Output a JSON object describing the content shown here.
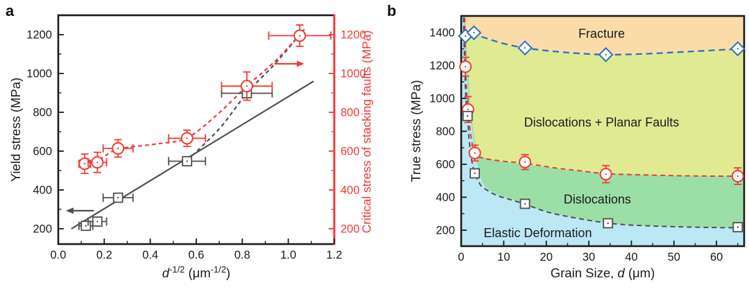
{
  "colors": {
    "axis": "#1a1a1a",
    "gray": "#4f4f4f",
    "red": "#EF3B36",
    "blue": "#2F6FC4",
    "region_fracture": "#FBDCA9",
    "region_planar": "#DFEA93",
    "region_dislocations": "#9CDFA6",
    "region_elastic": "#BCE7F5"
  },
  "figure": {
    "panels": [
      {
        "label": "a",
        "ylabel_left": "Yield stress (MPa)",
        "ylabel_right": "Critical stress of stacking faults (MPa)",
        "xlabel": {
          "var": "d",
          "exp": "-1/2",
          "unit_open": " (μm",
          "unit_exp": "-1/2",
          "unit_close": ")"
        }
      },
      {
        "label": "b",
        "ylabel": "True stress (MPa)",
        "xlabel": {
          "pre": "Grain Size, ",
          "var": "d",
          "post": " (μm)"
        }
      }
    ]
  },
  "chart_data": [
    {
      "id": "a",
      "type": "scatter",
      "xlabel_text": "d^-1/2 (um^-1/2)",
      "ylabel_left": "Yield stress (MPa)",
      "ylabel_right": "Critical stress of stacking faults (MPa)",
      "xlim": [
        0,
        1.2
      ],
      "ylim": [
        121,
        1300
      ],
      "xticks": [
        0,
        0.2,
        0.4,
        0.6,
        0.8,
        1.0,
        1.2
      ],
      "xtick_labels": [
        "0.0",
        "0.2",
        "0.4",
        "0.6",
        "0.8",
        "1.0",
        "1.2"
      ],
      "x_minor_step": 0.1,
      "yticks": [
        200,
        400,
        600,
        800,
        1000,
        1200
      ],
      "ytick_labels": [
        "200",
        "400",
        "600",
        "800",
        "1000",
        "1200"
      ],
      "y_minor_step": 100,
      "series": [
        {
          "name": "yield_stress",
          "marker": "square",
          "color": "#4f4f4f",
          "axis": "left",
          "points": [
            {
              "x": 0.12,
              "y": 215,
              "xerr": 0.03
            },
            {
              "x": 0.17,
              "y": 237,
              "xerr": 0.04
            },
            {
              "x": 0.26,
              "y": 360,
              "xerr": 0.065
            },
            {
              "x": 0.56,
              "y": 548,
              "xerr": 0.08
            },
            {
              "x": 0.82,
              "y": 898,
              "xerr": 0.11
            }
          ]
        },
        {
          "name": "critical_stress_stacking_faults",
          "marker": "circle",
          "color": "#EF3B36",
          "axis": "right",
          "points": [
            {
              "x": 0.115,
              "y": 535,
              "xerr": 0.025,
              "yerr": 50
            },
            {
              "x": 0.17,
              "y": 542,
              "xerr": 0.04,
              "yerr": 52
            },
            {
              "x": 0.26,
              "y": 614,
              "xerr": 0.065,
              "yerr": 45
            },
            {
              "x": 0.56,
              "y": 666,
              "xerr": 0.08,
              "yerr": 42
            },
            {
              "x": 0.82,
              "y": 935,
              "xerr": 0.11,
              "yerr": 73
            },
            {
              "x": 1.05,
              "y": 1195,
              "xerr": 0.135,
              "yerr": 55
            }
          ]
        }
      ],
      "lines": [
        {
          "name": "hall_petch_fit",
          "color": "#4f4f4f",
          "dash": "solid",
          "points": [
            [
              0.057,
              200
            ],
            [
              1.11,
              960
            ]
          ]
        },
        {
          "name": "yield_deviation",
          "color": "#4f4f4f",
          "dash": "dashed",
          "points": [
            [
              0.56,
              552
            ],
            [
              0.7,
              715
            ],
            [
              0.82,
              898
            ],
            [
              0.95,
              1060
            ],
            [
              1.06,
              1215
            ]
          ]
        },
        {
          "name": "stacking_fault_curve",
          "color": "#EF3B36",
          "dash": "dashed",
          "points": [
            [
              0.095,
              520
            ],
            [
              0.17,
              550
            ],
            [
              0.26,
              610
            ],
            [
              0.42,
              636
            ],
            [
              0.56,
              668
            ],
            [
              0.7,
              798
            ],
            [
              0.82,
              935
            ],
            [
              0.95,
              1072
            ],
            [
              1.07,
              1228
            ]
          ]
        }
      ],
      "arrows": [
        {
          "name": "left_axis_arrow",
          "color": "#4f4f4f",
          "from": [
            0.155,
            293
          ],
          "to": [
            0.033,
            293
          ]
        },
        {
          "name": "right_axis_arrow",
          "color": "#EF3B36",
          "from": [
            0.94,
            1050
          ],
          "to": [
            1.07,
            1050
          ]
        }
      ]
    },
    {
      "id": "b",
      "type": "scatter",
      "xlabel_text": "Grain Size, d (um)",
      "ylabel": "True stress (MPa)",
      "xlim": [
        0,
        66.5
      ],
      "ylim": [
        103,
        1500
      ],
      "xticks": [
        0,
        10,
        20,
        30,
        40,
        50,
        60
      ],
      "xtick_labels": [
        "0",
        "10",
        "20",
        "30",
        "40",
        "50",
        "60"
      ],
      "x_minor_step": 5,
      "yticks": [
        200,
        400,
        600,
        800,
        1000,
        1200,
        1400
      ],
      "ytick_labels": [
        "200",
        "400",
        "600",
        "800",
        "1000",
        "1200",
        "1400"
      ],
      "y_minor_step": 100,
      "regions": [
        {
          "name": "fracture",
          "label": "Fracture",
          "color": "#FBDCA9",
          "label_x": 33,
          "label_y": 1392
        },
        {
          "name": "dislocations_planar_faults",
          "label": "Dislocations + Planar Faults",
          "color": "#DFEA93",
          "label_x": 33,
          "label_y": 855,
          "fill_boundary": [
            [
              0,
              1388
            ],
            [
              2,
              1392
            ],
            [
              5,
              1372
            ],
            [
              10,
              1332
            ],
            [
              15,
              1306
            ],
            [
              21,
              1287
            ],
            [
              27,
              1274
            ],
            [
              34,
              1265
            ],
            [
              42,
              1269
            ],
            [
              50,
              1279
            ],
            [
              58,
              1290
            ],
            [
              66.5,
              1301
            ]
          ]
        },
        {
          "name": "dislocations",
          "label": "Dislocations",
          "color": "#9CDFA6",
          "label_x": 32,
          "label_y": 388,
          "fill_boundary": [
            [
              1.0,
              1500
            ],
            [
              1.5,
              1230
            ],
            [
              2.1,
              1000
            ],
            [
              2.7,
              840
            ],
            [
              3.4,
              722
            ],
            [
              4.2,
              662
            ],
            [
              5,
              644
            ],
            [
              8,
              624
            ],
            [
              12,
              610
            ],
            [
              15,
              600
            ],
            [
              22,
              576
            ],
            [
              28,
              558
            ],
            [
              34,
              545
            ],
            [
              45,
              535
            ],
            [
              55,
              530
            ],
            [
              66.5,
              527
            ]
          ]
        },
        {
          "name": "elastic_deformation",
          "label": "Elastic Deformation",
          "color": "#BCE7F5",
          "label_x": 18,
          "label_y": 182,
          "fill_boundary": [
            [
              0.55,
              1500
            ],
            [
              0.9,
              1320
            ],
            [
              1.5,
              1090
            ],
            [
              2.1,
              920
            ],
            [
              2.7,
              790
            ],
            [
              3.4,
              660
            ],
            [
              4.0,
              580
            ],
            [
              4.8,
              505
            ],
            [
              5.5,
              470
            ],
            [
              8,
              422
            ],
            [
              12,
              386
            ],
            [
              15,
              358
            ],
            [
              20,
              313
            ],
            [
              25,
              284
            ],
            [
              30,
              261
            ],
            [
              34.5,
              245
            ],
            [
              40,
              232
            ],
            [
              50,
              222
            ],
            [
              60,
              217
            ],
            [
              66.5,
              215
            ]
          ]
        }
      ],
      "curves": [
        {
          "name": "fracture_boundary",
          "color": "#2F6FC4",
          "dash": "9 6",
          "width": 2.3,
          "points": [
            [
              0,
              1388
            ],
            [
              2,
              1392
            ],
            [
              5,
              1372
            ],
            [
              10,
              1332
            ],
            [
              15,
              1306
            ],
            [
              21,
              1287
            ],
            [
              27,
              1274
            ],
            [
              34,
              1265
            ],
            [
              42,
              1269
            ],
            [
              50,
              1279
            ],
            [
              58,
              1290
            ],
            [
              66.5,
              1301
            ]
          ]
        },
        {
          "name": "planar_fault_boundary",
          "color": "#EF3B36",
          "dash": "7 5",
          "width": 2,
          "points": [
            [
              0.8,
              1490
            ],
            [
              0.95,
              1300
            ],
            [
              1.0,
              1192
            ],
            [
              1.3,
              1040
            ],
            [
              1.6,
              932
            ],
            [
              2.3,
              770
            ],
            [
              3.2,
              668
            ],
            [
              5,
              638
            ],
            [
              10,
              618
            ],
            [
              15,
              606
            ],
            [
              22,
              578
            ],
            [
              28,
              560
            ],
            [
              34,
              543
            ],
            [
              45,
              534
            ],
            [
              55,
              529
            ],
            [
              66.5,
              527
            ]
          ]
        },
        {
          "name": "yield_boundary",
          "color": "#4f4f4f",
          "dash": "7 5",
          "width": 2,
          "points": [
            [
              0.55,
              1490
            ],
            [
              0.8,
              1230
            ],
            [
              1.05,
              1030
            ],
            [
              1.3,
              940
            ],
            [
              1.5,
              893
            ],
            [
              1.9,
              740
            ],
            [
              2.5,
              620
            ],
            [
              3.2,
              545
            ],
            [
              4.2,
              490
            ],
            [
              5,
              462
            ],
            [
              8,
              415
            ],
            [
              12,
              382
            ],
            [
              15,
              358
            ],
            [
              20,
              312
            ],
            [
              25,
              283
            ],
            [
              30,
              260
            ],
            [
              34.5,
              243
            ],
            [
              40,
              231
            ],
            [
              50,
              221
            ],
            [
              60,
              216
            ],
            [
              66.5,
              214
            ]
          ]
        }
      ],
      "series": [
        {
          "name": "fracture_stress",
          "marker": "diamond",
          "color": "#2F6FC4",
          "points": [
            {
              "x": 1,
              "y": 1378
            },
            {
              "x": 3,
              "y": 1398
            },
            {
              "x": 15,
              "y": 1306
            },
            {
              "x": 34,
              "y": 1265
            },
            {
              "x": 65,
              "y": 1301
            }
          ]
        },
        {
          "name": "planar_fault_stress",
          "marker": "circle",
          "color": "#EF3B36",
          "points": [
            {
              "x": 1,
              "y": 1192,
              "yerr": 57
            },
            {
              "x": 1.6,
              "y": 932,
              "yerr": 78
            },
            {
              "x": 3.2,
              "y": 668,
              "yerr": 48
            },
            {
              "x": 15,
              "y": 613,
              "yerr": 45
            },
            {
              "x": 34,
              "y": 540,
              "yerr": 52
            },
            {
              "x": 65,
              "y": 528,
              "yerr": 50
            }
          ]
        },
        {
          "name": "yield_stress",
          "marker": "square",
          "color": "#4f4f4f",
          "points": [
            {
              "x": 1.5,
              "y": 893
            },
            {
              "x": 3.2,
              "y": 545
            },
            {
              "x": 15,
              "y": 360
            },
            {
              "x": 34.5,
              "y": 242
            },
            {
              "x": 65,
              "y": 218
            }
          ]
        }
      ]
    }
  ]
}
